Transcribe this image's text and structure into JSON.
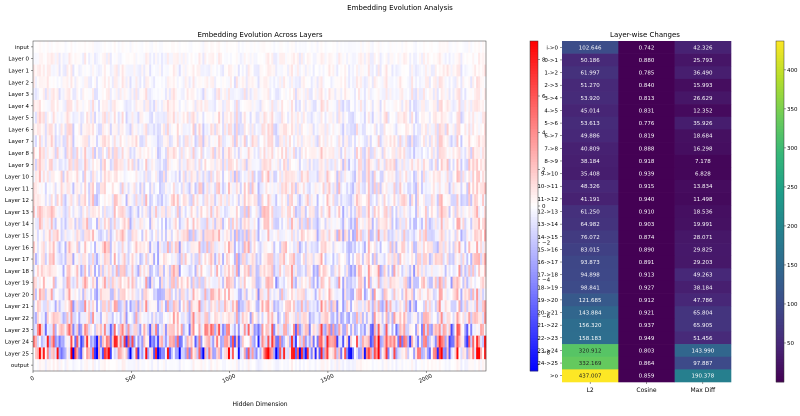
{
  "suptitle": "Embedding Evolution Analysis",
  "chart_data": [
    {
      "type": "heatmap",
      "title": "Embedding Evolution Across Layers",
      "xlabel": "Hidden Dimension",
      "ylabel": "",
      "y_labels": [
        "input",
        "Layer 0",
        "Layer 1",
        "Layer 2",
        "Layer 3",
        "Layer 4",
        "Layer 5",
        "Layer 6",
        "Layer 7",
        "Layer 8",
        "Layer 9",
        "Layer 10",
        "Layer 11",
        "Layer 12",
        "Layer 13",
        "Layer 14",
        "Layer 15",
        "Layer 16",
        "Layer 17",
        "Layer 18",
        "Layer 19",
        "Layer 20",
        "Layer 21",
        "Layer 22",
        "Layer 23",
        "Layer 24",
        "Layer 25",
        "output"
      ],
      "x_ticks": [
        0,
        500,
        1000,
        1500,
        2000
      ],
      "x_range": [
        0,
        2304
      ],
      "colormap": "bwr",
      "colorbar": {
        "min": -9,
        "max": 9,
        "ticks": [
          -8,
          -6,
          -4,
          -2,
          0,
          2,
          4,
          6,
          8
        ]
      },
      "note_values": "Per-dimension values are not legible; intensity grows with depth, strongest at Layer 24-25."
    },
    {
      "type": "heatmap",
      "title": "Layer-wise Changes",
      "columns": [
        "L2",
        "Cosine",
        "Max Diff"
      ],
      "rows": [
        {
          "label": "i->0",
          "values": [
            "102.646",
            "0.742",
            "42.326"
          ]
        },
        {
          "label": "0->1",
          "values": [
            "50.186",
            "0.880",
            "25.793"
          ]
        },
        {
          "label": "1->2",
          "values": [
            "61.997",
            "0.785",
            "36.490"
          ]
        },
        {
          "label": "2->3",
          "values": [
            "51.270",
            "0.840",
            "15.993"
          ]
        },
        {
          "label": "3->4",
          "values": [
            "53.920",
            "0.813",
            "26.629"
          ]
        },
        {
          "label": "4->5",
          "values": [
            "45.014",
            "0.831",
            "12.352"
          ]
        },
        {
          "label": "5->6",
          "values": [
            "53.613",
            "0.776",
            "35.926"
          ]
        },
        {
          "label": "6->7",
          "values": [
            "49.886",
            "0.819",
            "18.684"
          ]
        },
        {
          "label": "7->8",
          "values": [
            "40.809",
            "0.888",
            "16.298"
          ]
        },
        {
          "label": "8->9",
          "values": [
            "38.184",
            "0.918",
            "7.178"
          ]
        },
        {
          "label": "9->10",
          "values": [
            "35.408",
            "0.939",
            "6.828"
          ]
        },
        {
          "label": "10->11",
          "values": [
            "48.326",
            "0.915",
            "13.834"
          ]
        },
        {
          "label": "11->12",
          "values": [
            "41.191",
            "0.940",
            "11.498"
          ]
        },
        {
          "label": "12->13",
          "values": [
            "61.250",
            "0.910",
            "18.536"
          ]
        },
        {
          "label": "13->14",
          "values": [
            "64.982",
            "0.903",
            "19.991"
          ]
        },
        {
          "label": "14->15",
          "values": [
            "76.072",
            "0.874",
            "28.071"
          ]
        },
        {
          "label": "15->16",
          "values": [
            "83.015",
            "0.890",
            "29.825"
          ]
        },
        {
          "label": "16->17",
          "values": [
            "93.873",
            "0.891",
            "29.203"
          ]
        },
        {
          "label": "17->18",
          "values": [
            "94.898",
            "0.913",
            "49.263"
          ]
        },
        {
          "label": "18->19",
          "values": [
            "98.841",
            "0.927",
            "38.184"
          ]
        },
        {
          "label": "19->20",
          "values": [
            "121.685",
            "0.912",
            "47.786"
          ]
        },
        {
          "label": "20->21",
          "values": [
            "143.884",
            "0.921",
            "65.804"
          ]
        },
        {
          "label": "21->22",
          "values": [
            "156.320",
            "0.937",
            "65.905"
          ]
        },
        {
          "label": "22->23",
          "values": [
            "158.183",
            "0.949",
            "51.456"
          ]
        },
        {
          "label": "23->24",
          "values": [
            "320.912",
            "0.803",
            "143.990"
          ]
        },
        {
          "label": "24->25",
          "values": [
            "332.169",
            "0.864",
            "97.887"
          ]
        },
        {
          "label": ">o",
          "values": [
            "437.007",
            "0.859",
            "190.378"
          ]
        }
      ],
      "colormap": "viridis",
      "colorbar": {
        "min": 0,
        "max": 437.007,
        "ticks": [
          50,
          100,
          150,
          200,
          250,
          300,
          350,
          400
        ]
      }
    }
  ]
}
